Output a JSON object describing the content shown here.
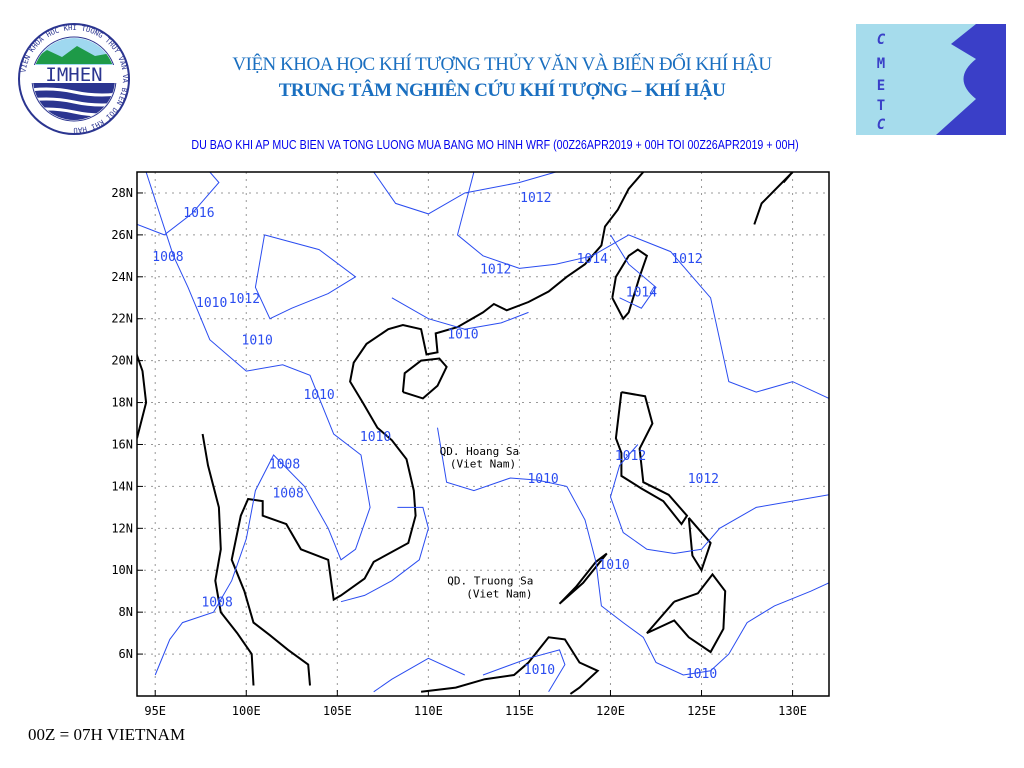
{
  "header": {
    "institute_logo_text": "IMHEN",
    "institute_logo_ring": "VIEN KHOA HOC KHI TUONG THUY VAN VA BIEN DOI KHI HAU",
    "institute_name": "VIỆN KHOA HỌC KHÍ TƯỢNG THỦY VĂN VÀ BIẾN ĐỔI KHÍ HẬU",
    "center_name": "TRUNG TÂM NGHIÊN CỨU KHÍ TƯỢNG – KHÍ HẬU",
    "center_logo_letters": [
      "C",
      "M",
      "E",
      "T",
      "C"
    ],
    "map_title": "DU BAO KHI AP MUC BIEN VA TONG LUONG MUA BANG MO HINH WRF (00Z26APR2019 + 00H TOI 00Z26APR2019 + 00H)"
  },
  "map": {
    "lon_range": [
      94,
      132
    ],
    "lat_range": [
      4,
      29
    ],
    "x_ticks": [
      "95E",
      "100E",
      "105E",
      "110E",
      "115E",
      "120E",
      "125E",
      "130E"
    ],
    "x_tick_values": [
      95,
      100,
      105,
      110,
      115,
      120,
      125,
      130
    ],
    "y_ticks": [
      "28N",
      "26N",
      "24N",
      "22N",
      "20N",
      "18N",
      "16N",
      "14N",
      "12N",
      "10N",
      "8N",
      "6N"
    ],
    "y_tick_values": [
      28,
      26,
      24,
      22,
      20,
      18,
      16,
      14,
      12,
      10,
      8,
      6
    ],
    "grid": "dotted",
    "colors": {
      "contour": "#2a4cf0",
      "coast": "#000000",
      "frame": "#000000",
      "grid": "#999999"
    },
    "contour_labels": [
      {
        "text": "1016",
        "lon": 97.4,
        "lat": 27.1
      },
      {
        "text": "1008",
        "lon": 95.7,
        "lat": 25.0
      },
      {
        "text": "1010",
        "lon": 98.1,
        "lat": 22.8
      },
      {
        "text": "1012",
        "lon": 99.9,
        "lat": 23.0
      },
      {
        "text": "1010",
        "lon": 100.6,
        "lat": 21.0
      },
      {
        "text": "1010",
        "lon": 104.0,
        "lat": 18.4
      },
      {
        "text": "1010",
        "lon": 107.1,
        "lat": 16.4
      },
      {
        "text": "1008",
        "lon": 102.1,
        "lat": 15.1
      },
      {
        "text": "1008",
        "lon": 102.3,
        "lat": 13.7
      },
      {
        "text": "1008",
        "lon": 98.4,
        "lat": 8.5
      },
      {
        "text": "1012",
        "lon": 115.9,
        "lat": 27.8
      },
      {
        "text": "1012",
        "lon": 113.7,
        "lat": 24.4
      },
      {
        "text": "1014",
        "lon": 119.0,
        "lat": 24.9
      },
      {
        "text": "1012",
        "lon": 124.2,
        "lat": 24.9
      },
      {
        "text": "1014",
        "lon": 121.7,
        "lat": 23.3
      },
      {
        "text": "1010",
        "lon": 111.9,
        "lat": 21.3
      },
      {
        "text": "1010",
        "lon": 116.3,
        "lat": 14.4
      },
      {
        "text": "1012",
        "lon": 121.1,
        "lat": 15.5
      },
      {
        "text": "1012",
        "lon": 125.1,
        "lat": 14.4
      },
      {
        "text": "1010",
        "lon": 120.2,
        "lat": 10.3
      },
      {
        "text": "1010",
        "lon": 116.1,
        "lat": 5.3
      },
      {
        "text": "1010",
        "lon": 125.0,
        "lat": 5.1
      }
    ],
    "place_labels": [
      {
        "text": "QD. Hoang Sa",
        "lon": 112.8,
        "lat": 15.7
      },
      {
        "text": "(Viet Nam)",
        "lon": 113.0,
        "lat": 15.1
      },
      {
        "text": "QD. Truong Sa",
        "lon": 113.4,
        "lat": 9.5
      },
      {
        "text": "(Viet Nam)",
        "lon": 113.9,
        "lat": 8.9
      }
    ]
  },
  "footer": {
    "time_note": "00Z = 07H VIETNAM"
  }
}
